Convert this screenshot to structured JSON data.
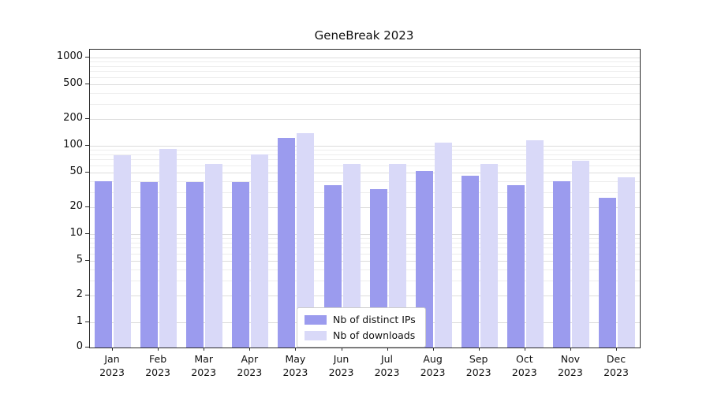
{
  "chart_data": {
    "type": "bar",
    "title": "GeneBreak 2023",
    "categories": [
      "Jan\n2023",
      "Feb\n2023",
      "Mar\n2023",
      "Apr\n2023",
      "May\n2023",
      "Jun\n2023",
      "Jul\n2023",
      "Aug\n2023",
      "Sep\n2023",
      "Oct\n2023",
      "Nov\n2023",
      "Dec\n2023"
    ],
    "series": [
      {
        "name": "Nb of distinct IPs",
        "color": "#9b9bee",
        "values": [
          40,
          39,
          39,
          39,
          122,
          36,
          32,
          52,
          46,
          36,
          40,
          26
        ]
      },
      {
        "name": "Nb of downloads",
        "color": "#d9d9f8",
        "values": [
          78,
          93,
          63,
          80,
          140,
          62,
          62,
          108,
          63,
          115,
          68,
          44
        ]
      }
    ],
    "yscale": "symlog",
    "yticks": [
      0,
      1,
      2,
      5,
      10,
      20,
      50,
      100,
      200,
      500,
      1000
    ],
    "minor_yticks": [
      3,
      4,
      6,
      7,
      8,
      9,
      30,
      40,
      60,
      70,
      80,
      90,
      300,
      400,
      600,
      700,
      800,
      900
    ],
    "ylim": [
      0,
      1000
    ],
    "grid": true,
    "legend_position": "lower center"
  }
}
